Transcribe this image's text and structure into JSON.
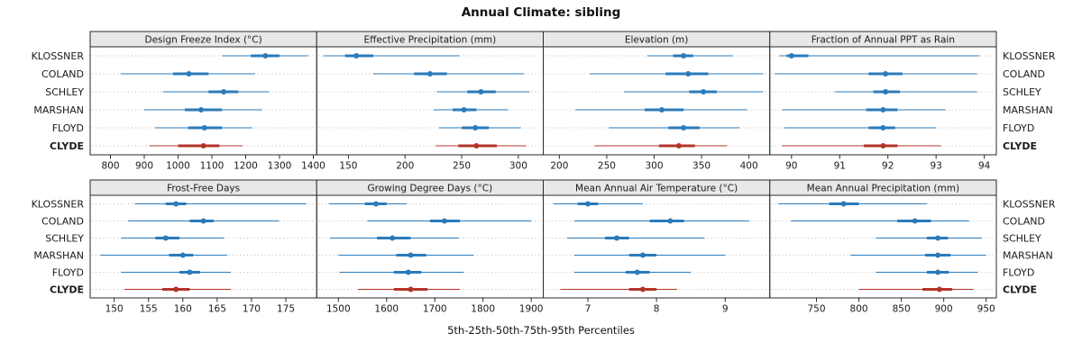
{
  "title": "Annual Climate: sibling",
  "footer_label": "5th-25th-50th-75th-95th Percentiles",
  "stations": [
    "KLOSSNER",
    "COLAND",
    "SCHLEY",
    "MARSHAN",
    "FLOYD",
    "CLYDE"
  ],
  "highlight_station": "CLYDE",
  "colors": {
    "series": "#2b7bba",
    "highlight": "#b5342a",
    "strip_bg": "#e8e8e8",
    "panel_border": "#2a2a2a",
    "grid": "#bdbdbd"
  },
  "chart_data": {
    "type": "dotplot",
    "percentiles": [
      "5th",
      "25th",
      "50th",
      "75th",
      "95th"
    ],
    "panels": [
      {
        "title": "Design Freeze Index (°C)",
        "xlim": [
          740,
          1410
        ],
        "ticks": [
          800,
          900,
          1000,
          1100,
          1200,
          1300,
          1400
        ],
        "values": [
          [
            1130,
            1215,
            1258,
            1300,
            1385
          ],
          [
            830,
            985,
            1032,
            1090,
            1228
          ],
          [
            955,
            1090,
            1135,
            1178,
            1268
          ],
          [
            900,
            1020,
            1068,
            1130,
            1248
          ],
          [
            932,
            1030,
            1078,
            1130,
            1220
          ],
          [
            915,
            1000,
            1075,
            1122,
            1190
          ]
        ]
      },
      {
        "title": "Effective Precipitation (mm)",
        "xlim": [
          122,
          322
        ],
        "ticks": [
          150,
          200,
          250,
          300
        ],
        "values": [
          [
            128,
            147,
            157,
            172,
            248
          ],
          [
            172,
            208,
            222,
            237,
            305
          ],
          [
            228,
            255,
            267,
            280,
            310
          ],
          [
            225,
            242,
            252,
            263,
            291
          ],
          [
            230,
            250,
            262,
            274,
            302
          ],
          [
            227,
            247,
            263,
            281,
            307
          ]
        ]
      },
      {
        "title": "Elevation (m)",
        "xlim": [
          183,
          422
        ],
        "ticks": [
          200,
          250,
          300,
          350,
          400
        ],
        "values": [
          [
            293,
            320,
            331,
            341,
            383
          ],
          [
            232,
            312,
            336,
            357,
            415
          ],
          [
            268,
            337,
            352,
            366,
            415
          ],
          [
            217,
            290,
            308,
            331,
            398
          ],
          [
            252,
            315,
            331,
            348,
            390
          ],
          [
            237,
            305,
            326,
            343,
            377
          ]
        ]
      },
      {
        "title": "Fraction of Annual PPT as Rain",
        "xlim": [
          89.55,
          94.25
        ],
        "ticks": [
          90,
          91,
          92,
          93,
          94
        ],
        "values": [
          [
            89.75,
            89.9,
            90.0,
            90.35,
            93.9
          ],
          [
            89.65,
            91.6,
            91.95,
            92.3,
            93.85
          ],
          [
            90.9,
            91.7,
            91.95,
            92.25,
            93.85
          ],
          [
            89.8,
            91.55,
            91.9,
            92.2,
            93.2
          ],
          [
            89.85,
            91.6,
            91.9,
            92.15,
            93.0
          ],
          [
            89.8,
            91.5,
            91.9,
            92.2,
            93.1
          ]
        ]
      },
      {
        "title": "Frost-Free Days",
        "xlim": [
          146.5,
          179.5
        ],
        "ticks": [
          150,
          155,
          160,
          165,
          170,
          175
        ],
        "values": [
          [
            153,
            157.5,
            159,
            160.5,
            178
          ],
          [
            152,
            161,
            163,
            164.5,
            174
          ],
          [
            151,
            156,
            157.5,
            159.5,
            166
          ],
          [
            148,
            158,
            160,
            161.5,
            166.5
          ],
          [
            151,
            159.5,
            161,
            162.5,
            167
          ],
          [
            151.5,
            157,
            159,
            161,
            167
          ]
        ]
      },
      {
        "title": "Growing Degree Days (°C)",
        "xlim": [
          1455,
          1925
        ],
        "ticks": [
          1500,
          1600,
          1700,
          1800,
          1900
        ],
        "values": [
          [
            1480,
            1555,
            1578,
            1600,
            1642
          ],
          [
            1560,
            1690,
            1720,
            1752,
            1900
          ],
          [
            1482,
            1580,
            1612,
            1650,
            1750
          ],
          [
            1500,
            1620,
            1650,
            1682,
            1780
          ],
          [
            1502,
            1615,
            1645,
            1672,
            1760
          ],
          [
            1540,
            1615,
            1650,
            1685,
            1752
          ]
        ]
      },
      {
        "title": "Mean Annual Air Temperature (°C)",
        "xlim": [
          6.35,
          9.65
        ],
        "ticks": [
          7,
          8,
          9
        ],
        "values": [
          [
            6.5,
            6.85,
            7.0,
            7.15,
            7.8
          ],
          [
            6.8,
            7.9,
            8.2,
            8.4,
            9.35
          ],
          [
            6.7,
            7.25,
            7.42,
            7.6,
            8.7
          ],
          [
            6.8,
            7.6,
            7.8,
            8.0,
            9.0
          ],
          [
            6.8,
            7.55,
            7.72,
            7.9,
            8.5
          ],
          [
            6.6,
            7.6,
            7.8,
            8.0,
            8.3
          ]
        ]
      },
      {
        "title": "Mean Annual Precipitation (mm)",
        "xlim": [
          695,
          962
        ],
        "ticks": [
          750,
          800,
          850,
          900,
          950
        ],
        "values": [
          [
            705,
            765,
            782,
            800,
            880
          ],
          [
            720,
            845,
            866,
            885,
            930
          ],
          [
            820,
            880,
            893,
            905,
            945
          ],
          [
            790,
            878,
            893,
            908,
            950
          ],
          [
            820,
            880,
            893,
            906,
            940
          ],
          [
            800,
            875,
            895,
            910,
            935
          ]
        ]
      }
    ]
  }
}
